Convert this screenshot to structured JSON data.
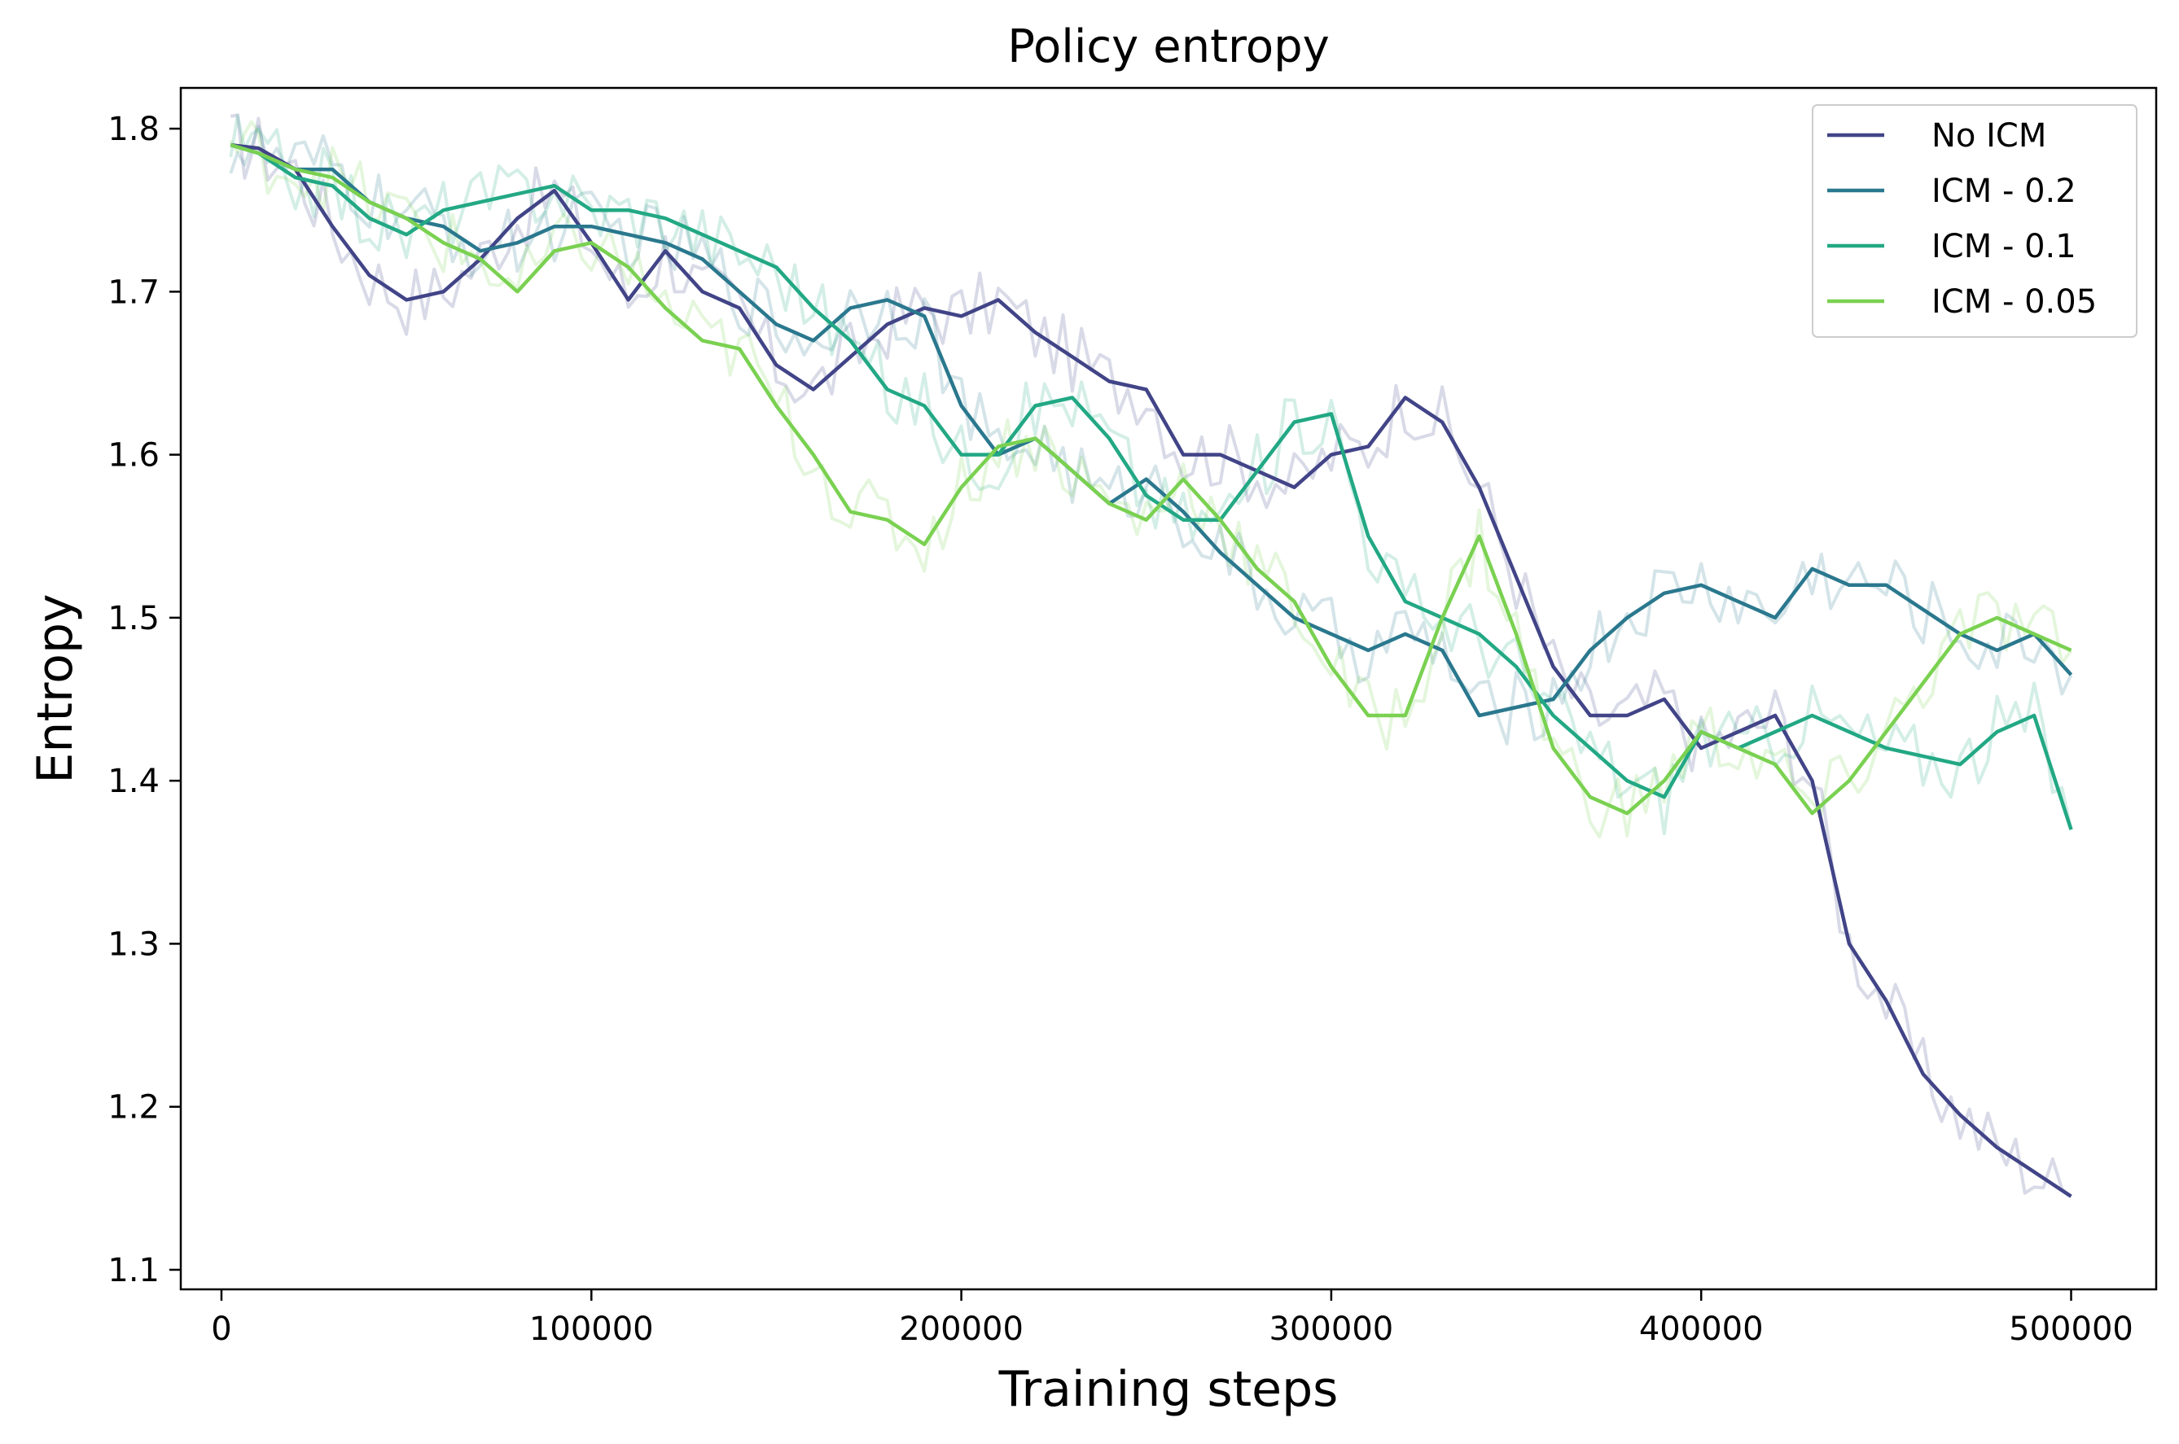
{
  "chart_data": {
    "type": "line",
    "title": "Policy entropy",
    "xlabel": "Training steps",
    "ylabel": "Entropy",
    "xlim": [
      -11000,
      523000
    ],
    "ylim": [
      1.088,
      1.825
    ],
    "xticks": [
      0,
      100000,
      200000,
      300000,
      400000,
      500000
    ],
    "xtick_labels": [
      "0",
      "100000",
      "200000",
      "300000",
      "400000",
      "500000"
    ],
    "yticks": [
      1.1,
      1.2,
      1.3,
      1.4,
      1.5,
      1.6,
      1.7,
      1.8
    ],
    "ytick_labels": [
      "1.1",
      "1.2",
      "1.3",
      "1.4",
      "1.5",
      "1.6",
      "1.7",
      "1.8"
    ],
    "grid": false,
    "legend_position": "top-right",
    "note_raw_curves": "each series is drawn as a faint raw curve plus a solid smoothed curve",
    "series": [
      {
        "name": "No ICM",
        "color": "#414487",
        "x": [
          2500,
          10000,
          20000,
          30000,
          40000,
          50000,
          60000,
          70000,
          80000,
          90000,
          100000,
          110000,
          120000,
          130000,
          140000,
          150000,
          160000,
          170000,
          180000,
          190000,
          200000,
          210000,
          220000,
          230000,
          240000,
          250000,
          260000,
          270000,
          280000,
          290000,
          300000,
          310000,
          320000,
          330000,
          340000,
          350000,
          360000,
          370000,
          380000,
          390000,
          400000,
          410000,
          420000,
          430000,
          440000,
          450000,
          460000,
          470000,
          480000,
          490000,
          500000
        ],
        "values": [
          1.79,
          1.788,
          1.775,
          1.74,
          1.71,
          1.695,
          1.7,
          1.72,
          1.745,
          1.762,
          1.73,
          1.695,
          1.725,
          1.7,
          1.69,
          1.655,
          1.64,
          1.66,
          1.68,
          1.69,
          1.685,
          1.695,
          1.675,
          1.66,
          1.645,
          1.64,
          1.6,
          1.6,
          1.59,
          1.58,
          1.6,
          1.605,
          1.635,
          1.62,
          1.58,
          1.525,
          1.47,
          1.44,
          1.44,
          1.45,
          1.42,
          1.43,
          1.44,
          1.4,
          1.3,
          1.265,
          1.22,
          1.195,
          1.175,
          1.16,
          1.145
        ]
      },
      {
        "name": "ICM - 0.2",
        "color": "#2A788E",
        "x": [
          2500,
          10000,
          20000,
          30000,
          40000,
          50000,
          60000,
          70000,
          80000,
          90000,
          100000,
          110000,
          120000,
          130000,
          140000,
          150000,
          160000,
          170000,
          180000,
          190000,
          200000,
          210000,
          220000,
          230000,
          240000,
          250000,
          260000,
          270000,
          280000,
          290000,
          300000,
          310000,
          320000,
          330000,
          340000,
          350000,
          360000,
          370000,
          380000,
          390000,
          400000,
          410000,
          420000,
          430000,
          440000,
          450000,
          460000,
          470000,
          480000,
          490000,
          500000
        ],
        "values": [
          1.79,
          1.785,
          1.775,
          1.775,
          1.755,
          1.745,
          1.74,
          1.725,
          1.73,
          1.74,
          1.74,
          1.735,
          1.73,
          1.72,
          1.7,
          1.68,
          1.67,
          1.69,
          1.695,
          1.685,
          1.63,
          1.6,
          1.61,
          1.59,
          1.57,
          1.585,
          1.565,
          1.54,
          1.52,
          1.5,
          1.49,
          1.48,
          1.49,
          1.48,
          1.44,
          1.445,
          1.45,
          1.48,
          1.5,
          1.515,
          1.52,
          1.51,
          1.5,
          1.53,
          1.52,
          1.52,
          1.505,
          1.49,
          1.48,
          1.49,
          1.465
        ]
      },
      {
        "name": "ICM - 0.1",
        "color": "#22A884",
        "x": [
          2500,
          10000,
          20000,
          30000,
          40000,
          50000,
          60000,
          70000,
          80000,
          90000,
          100000,
          110000,
          120000,
          130000,
          140000,
          150000,
          160000,
          170000,
          180000,
          190000,
          200000,
          210000,
          220000,
          230000,
          240000,
          250000,
          260000,
          270000,
          280000,
          290000,
          300000,
          310000,
          320000,
          330000,
          340000,
          350000,
          360000,
          370000,
          380000,
          390000,
          400000,
          410000,
          420000,
          430000,
          440000,
          450000,
          460000,
          470000,
          480000,
          490000,
          500000
        ],
        "values": [
          1.79,
          1.785,
          1.77,
          1.765,
          1.745,
          1.735,
          1.75,
          1.755,
          1.76,
          1.765,
          1.75,
          1.75,
          1.745,
          1.735,
          1.725,
          1.715,
          1.69,
          1.67,
          1.64,
          1.63,
          1.6,
          1.6,
          1.63,
          1.635,
          1.61,
          1.575,
          1.56,
          1.56,
          1.59,
          1.62,
          1.625,
          1.55,
          1.51,
          1.5,
          1.49,
          1.47,
          1.44,
          1.42,
          1.4,
          1.39,
          1.43,
          1.42,
          1.43,
          1.44,
          1.43,
          1.42,
          1.415,
          1.41,
          1.43,
          1.44,
          1.37
        ]
      },
      {
        "name": "ICM - 0.05",
        "color": "#7AD151",
        "x": [
          2500,
          10000,
          20000,
          30000,
          40000,
          50000,
          60000,
          70000,
          80000,
          90000,
          100000,
          110000,
          120000,
          130000,
          140000,
          150000,
          160000,
          170000,
          180000,
          190000,
          200000,
          210000,
          220000,
          230000,
          240000,
          250000,
          260000,
          270000,
          280000,
          290000,
          300000,
          310000,
          320000,
          330000,
          340000,
          350000,
          360000,
          370000,
          380000,
          390000,
          400000,
          410000,
          420000,
          430000,
          440000,
          450000,
          460000,
          470000,
          480000,
          490000,
          500000
        ],
        "values": [
          1.79,
          1.785,
          1.775,
          1.77,
          1.755,
          1.745,
          1.73,
          1.72,
          1.7,
          1.725,
          1.73,
          1.715,
          1.69,
          1.67,
          1.665,
          1.63,
          1.6,
          1.565,
          1.56,
          1.545,
          1.58,
          1.605,
          1.61,
          1.59,
          1.57,
          1.56,
          1.585,
          1.56,
          1.53,
          1.51,
          1.47,
          1.44,
          1.44,
          1.5,
          1.55,
          1.49,
          1.42,
          1.39,
          1.38,
          1.4,
          1.43,
          1.42,
          1.41,
          1.38,
          1.4,
          1.43,
          1.46,
          1.49,
          1.5,
          1.49,
          1.48
        ]
      }
    ]
  }
}
